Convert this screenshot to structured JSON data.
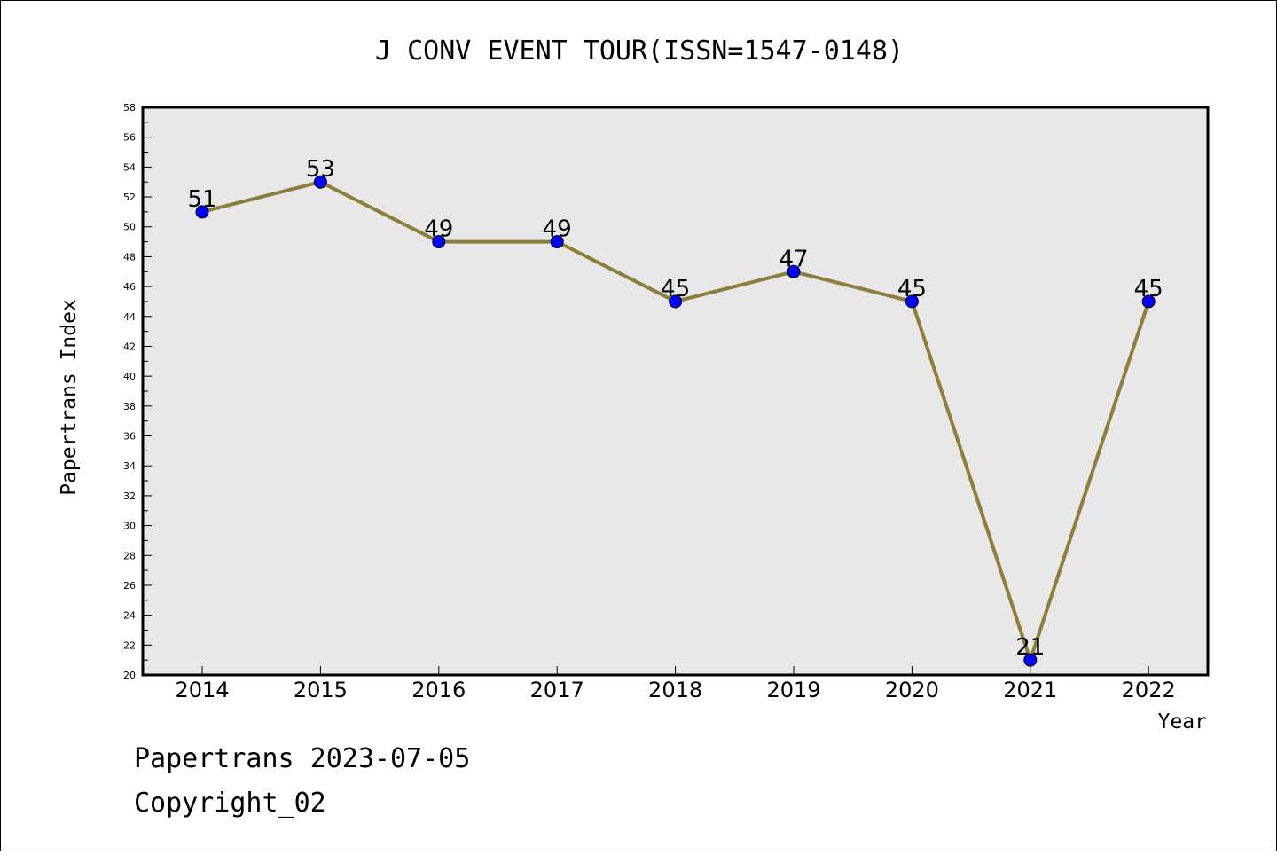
{
  "chart_data": {
    "type": "line",
    "title": "J CONV EVENT TOUR(ISSN=1547-0148)",
    "xlabel": "Year",
    "ylabel": "Papertrans Index",
    "x": [
      "2014",
      "2015",
      "2016",
      "2017",
      "2018",
      "2019",
      "2020",
      "2021",
      "2022"
    ],
    "series": [
      {
        "values": [
          51,
          53,
          49,
          49,
          45,
          47,
          45,
          21,
          45
        ]
      }
    ],
    "ylim": [
      20,
      58
    ],
    "ytick_step": 2,
    "grid": false,
    "legend": "none",
    "colors": {
      "line": "#8c7f3a",
      "marker": "#0000ff",
      "plot_bg": "#e8e8e8"
    }
  },
  "footer": {
    "line1": "Papertrans 2023-07-05",
    "line2": "Copyright_02"
  }
}
